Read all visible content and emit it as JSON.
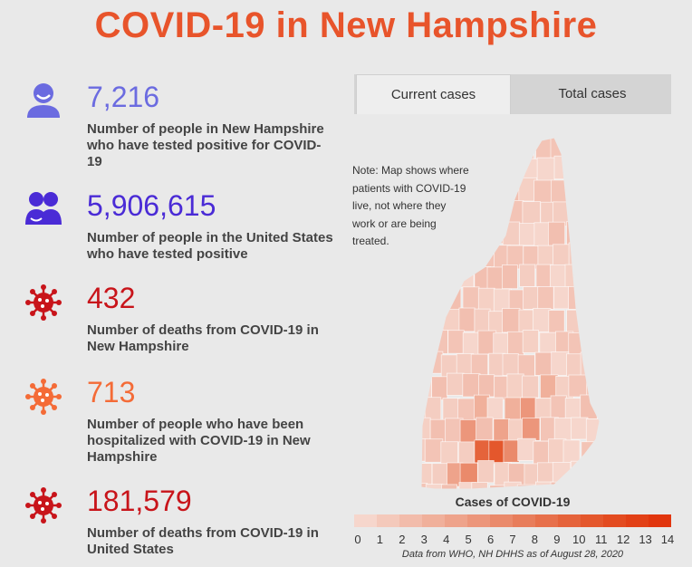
{
  "title": "COVID-19 in New Hampshire",
  "stats": [
    {
      "value": "7,216",
      "description": "Number of people in New Hampshire who have tested positive for COVID-19",
      "color": "#6b6be0",
      "icon": "person-icon"
    },
    {
      "value": "5,906,615",
      "description": "Number of people in the United States who have tested positive",
      "color": "#4a2bd6",
      "icon": "people-group-icon"
    },
    {
      "value": "432",
      "description": "Number of deaths from COVID-19 in New Hampshire",
      "color": "#c8141a",
      "icon": "virus-icon"
    },
    {
      "value": "713",
      "description": "Number of people who have been hospitalized with COVID-19 in New Hampshire",
      "color": "#f46b37",
      "icon": "virus-icon"
    },
    {
      "value": "181,579",
      "description": "Number of deaths from COVID-19 in United States",
      "color": "#c8141a",
      "icon": "virus-icon"
    }
  ],
  "tabs": [
    {
      "label": "Current cases",
      "active": true
    },
    {
      "label": "Total cases",
      "active": false
    }
  ],
  "map": {
    "note": "Note: Map shows where patients with COVID-19 live, not where they work or are being treated.",
    "legend_title": "Cases of COVID-19",
    "legend_labels": [
      "0",
      "1",
      "2",
      "3",
      "4",
      "5",
      "6",
      "7",
      "8",
      "9",
      "10",
      "11",
      "12",
      "13",
      "14"
    ],
    "legend_colors": [
      "#f6d6cc",
      "#f4c9bb",
      "#f2bcab",
      "#f0b09b",
      "#eea38b",
      "#ec967b",
      "#ea8a6b",
      "#e87d5b",
      "#e7704b",
      "#e5633b",
      "#e4572c",
      "#e34b20",
      "#e24016",
      "#e1360e"
    ],
    "source": "Data from WHO, NH DHHS as of August 28, 2020"
  }
}
